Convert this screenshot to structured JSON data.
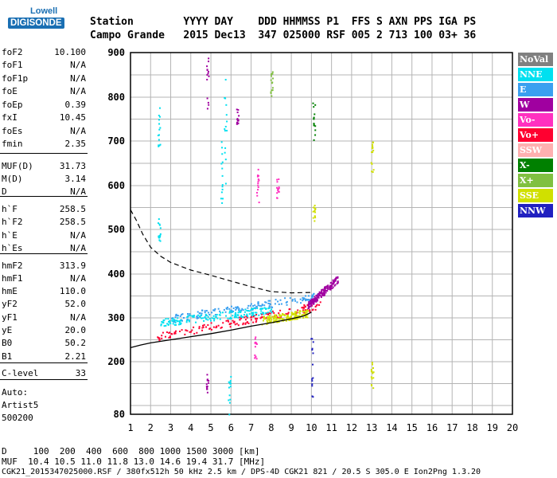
{
  "logo": {
    "top": "Lowell",
    "main": "DIGISONDE"
  },
  "header": {
    "row1": "Station        YYYY DAY    DDD HHMMSS P1  FFS S AXN PPS IGA PS",
    "row2": "Campo Grande   2015 Dec13  347 025000 RSF 005 2 713 100 03+ 36"
  },
  "params": [
    {
      "k": "foF2",
      "v": "10.100"
    },
    {
      "k": "foF1",
      "v": "N/A"
    },
    {
      "k": "foF1p",
      "v": "N/A"
    },
    {
      "k": "foE",
      "v": "N/A"
    },
    {
      "k": "foEp",
      "v": "0.39"
    },
    {
      "k": "fxI",
      "v": "10.45"
    },
    {
      "k": "foEs",
      "v": "N/A"
    },
    {
      "k": "fmin",
      "v": "2.35"
    },
    {
      "k": "MUF(D)",
      "v": "31.73"
    },
    {
      "k": "M(D)",
      "v": "3.14"
    },
    {
      "k": "D",
      "v": "N/A"
    },
    {
      "k": "h`F",
      "v": "258.5"
    },
    {
      "k": "h`F2",
      "v": "258.5"
    },
    {
      "k": "h`E",
      "v": "N/A"
    },
    {
      "k": "h`Es",
      "v": "N/A"
    },
    {
      "k": "hmF2",
      "v": "313.9"
    },
    {
      "k": "hmF1",
      "v": "N/A"
    },
    {
      "k": "hmE",
      "v": "110.0"
    },
    {
      "k": "yF2",
      "v": "52.0"
    },
    {
      "k": "yF1",
      "v": "N/A"
    },
    {
      "k": "yE",
      "v": "20.0"
    },
    {
      "k": "B0",
      "v": "50.2"
    },
    {
      "k": "B1",
      "v": "2.21"
    },
    {
      "k": "C-level",
      "v": "33"
    }
  ],
  "auto": {
    "line1": "Auto:",
    "line2": "Artist5",
    "line3": "500200"
  },
  "legend": [
    {
      "label": "NoVal",
      "color": "#808080"
    },
    {
      "label": "NNE",
      "color": "#00e0f0"
    },
    {
      "label": "E",
      "color": "#3aa0f0"
    },
    {
      "label": "W",
      "color": "#a000a0"
    },
    {
      "label": "Vo-",
      "color": "#ff30c0"
    },
    {
      "label": "Vo+",
      "color": "#ff0030"
    },
    {
      "label": "SSW",
      "color": "#ffb0b0"
    },
    {
      "label": "X-",
      "color": "#008000"
    },
    {
      "label": "X+",
      "color": "#80c040"
    },
    {
      "label": "SSE",
      "color": "#d0e000"
    },
    {
      "label": "NNW",
      "color": "#2020c0"
    }
  ],
  "footer": {
    "d_row": "D     100  200  400  600  800 1000 1500 3000 [km]",
    "muf_row": "MUF  10.4 10.5 11.0 11.8 13.0 14.6 19.4 31.7 [MHz]",
    "file_row": "CGK21_2015347025000.RSF / 380fx512h 50 kHz 2.5 km / DPS-4D CGK21 821 / 20.5 S 305.0 E Ion2Png 1.3.20"
  },
  "chart_data": {
    "type": "scatter",
    "x_ticks": [
      "1",
      "2",
      "3",
      "4",
      "5",
      "6",
      "7",
      "8",
      "9",
      "10",
      "11",
      "12",
      "13",
      "14",
      "15",
      "16",
      "17",
      "18",
      "19",
      "20"
    ],
    "y_ticks": [
      "80",
      "200",
      "300",
      "400",
      "500",
      "600",
      "700",
      "800",
      "900"
    ],
    "xlim": [
      1,
      20
    ],
    "ylim": [
      80,
      900
    ],
    "y_scale": "nonlinear",
    "grid": true,
    "profile_curve": {
      "x": [
        1.0,
        1.5,
        2.0,
        3.0,
        4.0,
        5.0,
        6.0,
        7.0,
        8.0,
        9.0,
        9.6,
        10.0
      ],
      "y": [
        232,
        238,
        243,
        250,
        257,
        264,
        272,
        281,
        289,
        298,
        304,
        313
      ]
    },
    "dashed_curve": {
      "x": [
        1.0,
        1.3,
        1.6,
        2.0,
        2.5,
        3.0,
        4.0,
        5.0,
        6.0,
        7.0,
        8.0,
        9.0,
        10.0
      ],
      "y": [
        545,
        520,
        490,
        460,
        440,
        426,
        409,
        397,
        384,
        371,
        360,
        357,
        358
      ]
    },
    "trace_clusters": [
      {
        "mode": "Vo+",
        "x": [
          2.3,
          10.5
        ],
        "y": [
          258,
          330
        ]
      },
      {
        "mode": "E",
        "x": [
          3.0,
          10.3
        ],
        "y": [
          300,
          350
        ]
      },
      {
        "mode": "NNE",
        "x": [
          2.4,
          8.0
        ],
        "y": [
          290,
          320
        ]
      },
      {
        "mode": "SSE",
        "x": [
          7.5,
          9.8
        ],
        "y": [
          295,
          312
        ]
      },
      {
        "mode": "W",
        "x": [
          9.8,
          11.3
        ],
        "y": [
          330,
          390
        ]
      }
    ]
  }
}
